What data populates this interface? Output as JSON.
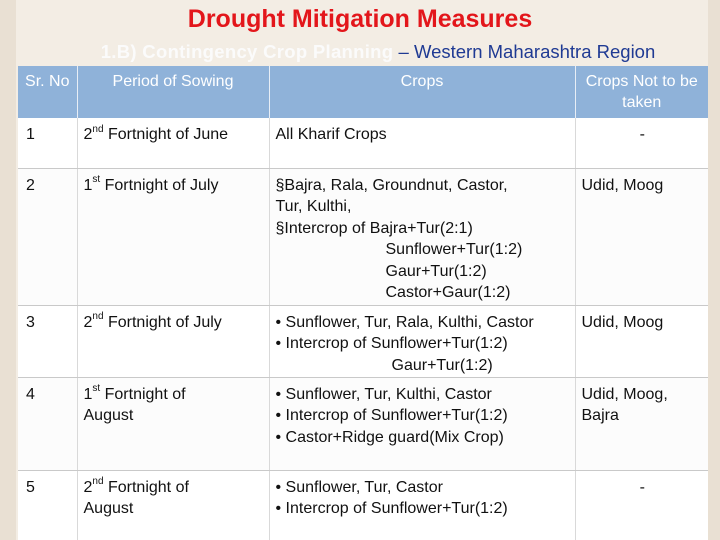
{
  "title": "Drought Mitigation Measures",
  "subtitle": {
    "highlight": "1.B) Contingency Crop Planning",
    "rest": " – Western Maharashtra Region"
  },
  "table": {
    "headers": {
      "sr": "Sr. No",
      "period": "Period of Sowing",
      "crops": "Crops",
      "not_taken": "Crops Not to be taken"
    },
    "rows": [
      {
        "sr": "1",
        "period_num": "2",
        "period_sup": "nd",
        "period_text": " Fortnight of June",
        "crops": [
          "All Kharif Crops"
        ],
        "not_taken": "-"
      },
      {
        "sr": "2",
        "period_num": "1",
        "period_sup": "st",
        "period_text": " Fortnight of July",
        "crops": [
          "§Bajra, Rala, Groundnut, Castor,",
          "Tur, Kulthi,",
          "§Intercrop of  Bajra+Tur(2:1)",
          "Sunflower+Tur(1:2)",
          "Gaur+Tur(1:2)",
          "Castor+Gaur(1:2)"
        ],
        "not_taken": "Udid, Moog"
      },
      {
        "sr": "3",
        "period_num": "2",
        "period_sup": "nd",
        "period_text": " Fortnight of July",
        "crops": [
          "• Sunflower, Tur, Rala, Kulthi, Castor",
          "• Intercrop of  Sunflower+Tur(1:2)",
          "Gaur+Tur(1:2)"
        ],
        "not_taken": "Udid, Moog"
      },
      {
        "sr": "4",
        "period_num": "1",
        "period_sup": "st",
        "period_text": "  Fortnight of",
        "period_text2": "August",
        "crops": [
          "• Sunflower, Tur, Kulthi, Castor",
          "• Intercrop of  Sunflower+Tur(1:2)",
          "• Castor+Ridge guard(Mix Crop)"
        ],
        "not_taken": "Udid, Moog,",
        "not_taken2": "Bajra"
      },
      {
        "sr": "5",
        "period_num": "2",
        "period_sup": "nd",
        "period_text": " Fortnight of",
        "period_text2": "August",
        "crops": [
          "• Sunflower, Tur, Castor",
          "• Intercrop of  Sunflower+Tur(1:2)"
        ],
        "not_taken": "-"
      }
    ]
  }
}
